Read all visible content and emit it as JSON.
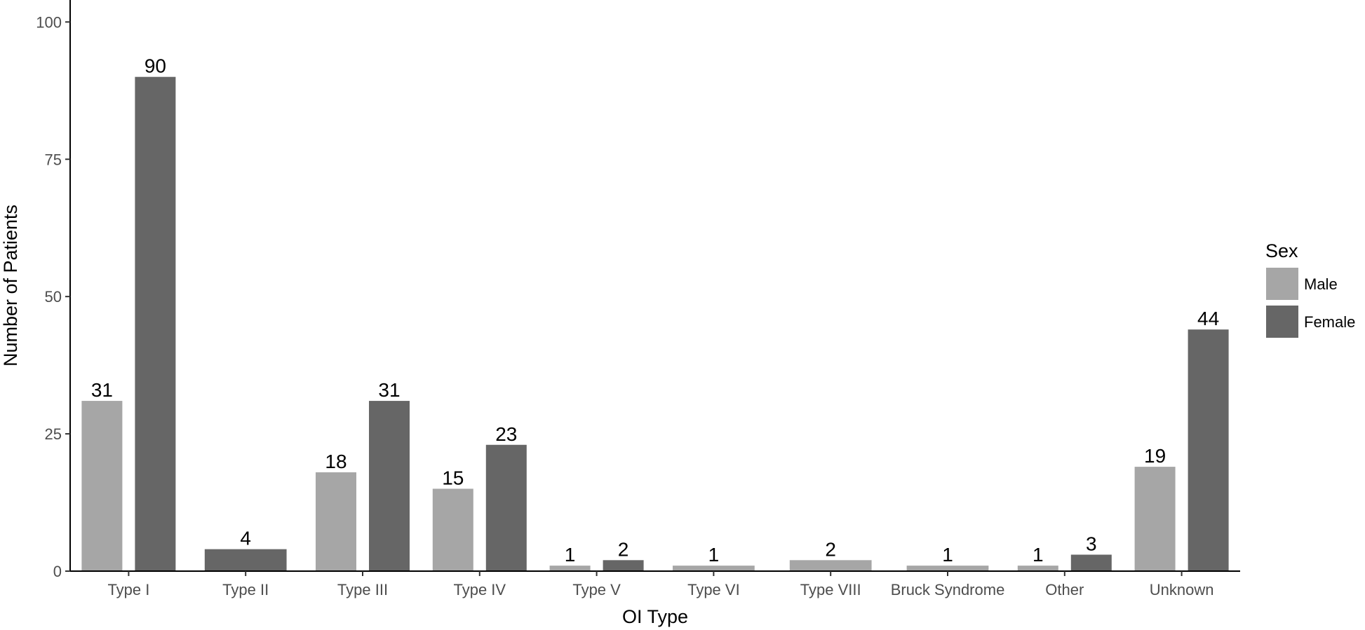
{
  "chart_data": {
    "type": "bar",
    "title": "",
    "xlabel": "OI Type",
    "ylabel": "Number of Patients",
    "ylim": [
      0,
      104
    ],
    "yticks": [
      0,
      25,
      50,
      75,
      100
    ],
    "categories": [
      "Type I",
      "Type II",
      "Type III",
      "Type IV",
      "Type V",
      "Type VI",
      "Type VIII",
      "Bruck Syndrome",
      "Other",
      "Unknown"
    ],
    "series": [
      {
        "name": "Male",
        "color": "#a6a6a6",
        "values": [
          31,
          null,
          18,
          15,
          1,
          1,
          2,
          1,
          1,
          19
        ]
      },
      {
        "name": "Female",
        "color": "#666666",
        "values": [
          90,
          4,
          31,
          23,
          2,
          null,
          null,
          null,
          3,
          44
        ]
      }
    ],
    "legend": {
      "title": "Sex",
      "position": "right"
    },
    "grid": false
  }
}
